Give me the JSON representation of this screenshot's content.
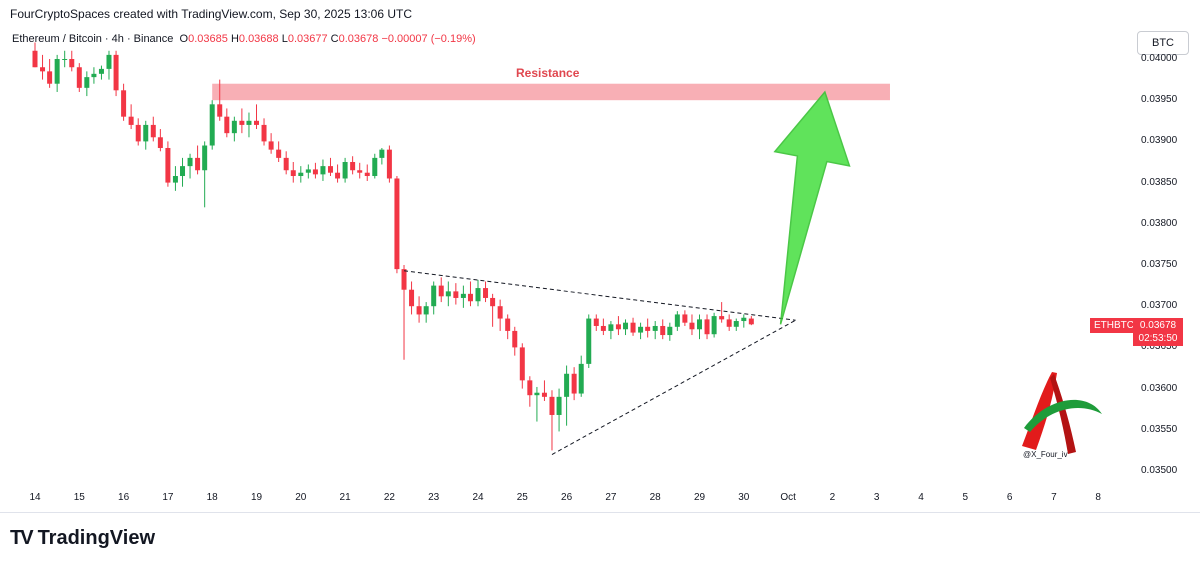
{
  "header": {
    "text": "FourCryptoSpaces created with TradingView.com, Sep 30, 2025 13:06 UTC"
  },
  "legend": {
    "symbol": "Ethereum / Bitcoin · 4h · Binance",
    "open_label": "O",
    "open": "0.03685",
    "high_label": "H",
    "high": "0.03688",
    "low_label": "L",
    "low": "0.03677",
    "close_label": "C",
    "close": "0.03678",
    "change": "−0.00007 (−0.19%)"
  },
  "currency": "BTC",
  "ticker": "ETHBTC",
  "last_price": "0.03678",
  "countdown": "02:53:50",
  "resistance_label": "Resistance",
  "watermark_handle": "@X_Four_iv",
  "brand": "TradingView",
  "colors": {
    "up": "#22ab52",
    "down": "#f23645",
    "resistance": "#f7a1a8",
    "arrow": "#4fe04a"
  },
  "chart_data": {
    "type": "candlestick",
    "title": "Ethereum / Bitcoin · 4h · Binance",
    "y_tick_labels": [
      "0.04000",
      "0.03950",
      "0.03900",
      "0.03850",
      "0.03800",
      "0.03750",
      "0.03700",
      "0.03650",
      "0.03600",
      "0.03550",
      "0.03500"
    ],
    "ylim": [
      0.0349,
      0.0402
    ],
    "x_tick_labels": [
      "14",
      "15",
      "16",
      "17",
      "18",
      "19",
      "20",
      "21",
      "22",
      "23",
      "24",
      "25",
      "26",
      "27",
      "28",
      "29",
      "30",
      "Oct",
      "2",
      "3",
      "4",
      "5",
      "6",
      "7",
      "8"
    ],
    "candles": [
      [
        14.0,
        0.0401,
        0.0402,
        0.0399,
        0.0399
      ],
      [
        14.17,
        0.0399,
        0.04005,
        0.03975,
        0.03985
      ],
      [
        14.33,
        0.03985,
        0.04,
        0.03965,
        0.0397
      ],
      [
        14.5,
        0.0397,
        0.04005,
        0.0396,
        0.04
      ],
      [
        14.67,
        0.04,
        0.0401,
        0.0399,
        0.04
      ],
      [
        14.83,
        0.04,
        0.0401,
        0.03985,
        0.0399
      ],
      [
        15.0,
        0.0399,
        0.03995,
        0.0396,
        0.03965
      ],
      [
        15.17,
        0.03965,
        0.03985,
        0.03955,
        0.03978
      ],
      [
        15.33,
        0.03978,
        0.0399,
        0.0397,
        0.03982
      ],
      [
        15.5,
        0.03982,
        0.03992,
        0.03975,
        0.03988
      ],
      [
        15.67,
        0.03988,
        0.0401,
        0.03975,
        0.04005
      ],
      [
        15.83,
        0.04005,
        0.0401,
        0.03955,
        0.03962
      ],
      [
        16.0,
        0.03962,
        0.0397,
        0.03925,
        0.0393
      ],
      [
        16.17,
        0.0393,
        0.03945,
        0.03915,
        0.0392
      ],
      [
        16.33,
        0.0392,
        0.03928,
        0.03895,
        0.039
      ],
      [
        16.5,
        0.039,
        0.03925,
        0.0389,
        0.0392
      ],
      [
        16.67,
        0.0392,
        0.0393,
        0.039,
        0.03905
      ],
      [
        16.83,
        0.03905,
        0.03915,
        0.03888,
        0.03892
      ],
      [
        17.0,
        0.03892,
        0.039,
        0.03845,
        0.0385
      ],
      [
        17.17,
        0.0385,
        0.0387,
        0.0384,
        0.03858
      ],
      [
        17.33,
        0.03858,
        0.0388,
        0.03845,
        0.0387
      ],
      [
        17.5,
        0.0387,
        0.03885,
        0.03855,
        0.0388
      ],
      [
        17.67,
        0.0388,
        0.03895,
        0.0386,
        0.03865
      ],
      [
        17.83,
        0.03865,
        0.039,
        0.0382,
        0.03895
      ],
      [
        18.0,
        0.03895,
        0.0395,
        0.0389,
        0.03945
      ],
      [
        18.17,
        0.03945,
        0.03975,
        0.03925,
        0.0393
      ],
      [
        18.33,
        0.0393,
        0.0394,
        0.03905,
        0.0391
      ],
      [
        18.5,
        0.0391,
        0.0393,
        0.039,
        0.03925
      ],
      [
        18.67,
        0.03925,
        0.0394,
        0.0391,
        0.0392
      ],
      [
        18.83,
        0.0392,
        0.03935,
        0.03905,
        0.03925
      ],
      [
        19.0,
        0.03925,
        0.03945,
        0.03915,
        0.0392
      ],
      [
        19.17,
        0.0392,
        0.03928,
        0.03895,
        0.039
      ],
      [
        19.33,
        0.039,
        0.0391,
        0.03885,
        0.0389
      ],
      [
        19.5,
        0.0389,
        0.039,
        0.03875,
        0.0388
      ],
      [
        19.67,
        0.0388,
        0.03888,
        0.0386,
        0.03865
      ],
      [
        19.83,
        0.03865,
        0.03875,
        0.0385,
        0.03858
      ],
      [
        20.0,
        0.03858,
        0.0387,
        0.0385,
        0.03862
      ],
      [
        20.17,
        0.03862,
        0.03872,
        0.03855,
        0.03866
      ],
      [
        20.33,
        0.03866,
        0.03874,
        0.03855,
        0.0386
      ],
      [
        20.5,
        0.0386,
        0.03878,
        0.03852,
        0.0387
      ],
      [
        20.67,
        0.0387,
        0.0388,
        0.03858,
        0.03862
      ],
      [
        20.83,
        0.03862,
        0.03872,
        0.0385,
        0.03855
      ],
      [
        21.0,
        0.03855,
        0.0388,
        0.0385,
        0.03875
      ],
      [
        21.17,
        0.03875,
        0.03882,
        0.0386,
        0.03865
      ],
      [
        21.33,
        0.03865,
        0.03874,
        0.03855,
        0.03862
      ],
      [
        21.5,
        0.03862,
        0.03872,
        0.03852,
        0.03858
      ],
      [
        21.67,
        0.03858,
        0.03885,
        0.03855,
        0.0388
      ],
      [
        21.83,
        0.0388,
        0.03892,
        0.03872,
        0.0389
      ],
      [
        22.0,
        0.0389,
        0.03895,
        0.0385,
        0.03855
      ],
      [
        22.17,
        0.03855,
        0.03858,
        0.0374,
        0.03745
      ],
      [
        22.33,
        0.03745,
        0.0375,
        0.03635,
        0.0372
      ],
      [
        22.5,
        0.0372,
        0.0373,
        0.0369,
        0.037
      ],
      [
        22.67,
        0.037,
        0.03712,
        0.0368,
        0.0369
      ],
      [
        22.83,
        0.0369,
        0.03705,
        0.0368,
        0.037
      ],
      [
        23.0,
        0.037,
        0.0373,
        0.0369,
        0.03725
      ],
      [
        23.17,
        0.03725,
        0.03735,
        0.03705,
        0.03712
      ],
      [
        23.33,
        0.03712,
        0.0373,
        0.037,
        0.03718
      ],
      [
        23.5,
        0.03718,
        0.03728,
        0.03702,
        0.0371
      ],
      [
        23.67,
        0.0371,
        0.03725,
        0.03698,
        0.03715
      ],
      [
        23.83,
        0.03715,
        0.0373,
        0.037,
        0.03706
      ],
      [
        24.0,
        0.03706,
        0.03732,
        0.037,
        0.03722
      ],
      [
        24.17,
        0.03722,
        0.0373,
        0.03705,
        0.0371
      ],
      [
        24.33,
        0.0371,
        0.03715,
        0.03675,
        0.037
      ],
      [
        24.5,
        0.037,
        0.03708,
        0.0367,
        0.03685
      ],
      [
        24.67,
        0.03685,
        0.0369,
        0.0366,
        0.0367
      ],
      [
        24.83,
        0.0367,
        0.03675,
        0.0364,
        0.0365
      ],
      [
        25.0,
        0.0365,
        0.03655,
        0.036,
        0.0361
      ],
      [
        25.17,
        0.0361,
        0.03615,
        0.03578,
        0.03592
      ],
      [
        25.33,
        0.03592,
        0.03602,
        0.0356,
        0.03595
      ],
      [
        25.5,
        0.03595,
        0.0361,
        0.03585,
        0.0359
      ],
      [
        25.67,
        0.0359,
        0.03598,
        0.03525,
        0.03568
      ],
      [
        25.83,
        0.03568,
        0.036,
        0.03548,
        0.0359
      ],
      [
        26.0,
        0.0359,
        0.03628,
        0.03555,
        0.03618
      ],
      [
        26.17,
        0.03618,
        0.03626,
        0.03586,
        0.03594
      ],
      [
        26.33,
        0.03594,
        0.0364,
        0.0359,
        0.0363
      ],
      [
        26.5,
        0.0363,
        0.0369,
        0.03625,
        0.03685
      ],
      [
        26.67,
        0.03685,
        0.0369,
        0.0367,
        0.03676
      ],
      [
        26.83,
        0.03676,
        0.03685,
        0.03665,
        0.0367
      ],
      [
        27.0,
        0.0367,
        0.03682,
        0.0366,
        0.03678
      ],
      [
        27.17,
        0.03678,
        0.03688,
        0.03665,
        0.03672
      ],
      [
        27.33,
        0.03672,
        0.03684,
        0.03665,
        0.0368
      ],
      [
        27.5,
        0.0368,
        0.03686,
        0.03664,
        0.03668
      ],
      [
        27.67,
        0.03668,
        0.0368,
        0.0366,
        0.03675
      ],
      [
        27.83,
        0.03675,
        0.03685,
        0.03662,
        0.0367
      ],
      [
        28.0,
        0.0367,
        0.03682,
        0.0366,
        0.03676
      ],
      [
        28.17,
        0.03676,
        0.03684,
        0.0366,
        0.03665
      ],
      [
        28.33,
        0.03665,
        0.0368,
        0.03658,
        0.03675
      ],
      [
        28.5,
        0.03675,
        0.03694,
        0.0367,
        0.0369
      ],
      [
        28.67,
        0.0369,
        0.03695,
        0.03676,
        0.0368
      ],
      [
        28.83,
        0.0368,
        0.0369,
        0.03665,
        0.03672
      ],
      [
        29.0,
        0.03672,
        0.0369,
        0.0366,
        0.03684
      ],
      [
        29.17,
        0.03684,
        0.0369,
        0.0366,
        0.03666
      ],
      [
        29.33,
        0.03666,
        0.03692,
        0.03662,
        0.03688
      ],
      [
        29.5,
        0.03688,
        0.03705,
        0.0368,
        0.03684
      ],
      [
        29.67,
        0.03684,
        0.0369,
        0.0367,
        0.03675
      ],
      [
        29.83,
        0.03675,
        0.03685,
        0.0367,
        0.03682
      ],
      [
        30.0,
        0.03682,
        0.0369,
        0.03674,
        0.03686
      ],
      [
        30.17,
        0.03685,
        0.03688,
        0.03677,
        0.03678
      ]
    ],
    "resistance_zone": {
      "label": "Resistance",
      "from": 0.0395,
      "to": 0.0397,
      "x_start": 18.0,
      "x_end": 33.3
    },
    "descending_trendline": [
      [
        22.33,
        0.03743
      ],
      [
        31.17,
        0.03683
      ]
    ],
    "ascending_trendline": [
      [
        25.67,
        0.0352
      ],
      [
        31.17,
        0.03683
      ]
    ],
    "projection_arrow": {
      "from": [
        30.83,
        0.03678
      ],
      "to": [
        31.83,
        0.0396
      ]
    }
  }
}
